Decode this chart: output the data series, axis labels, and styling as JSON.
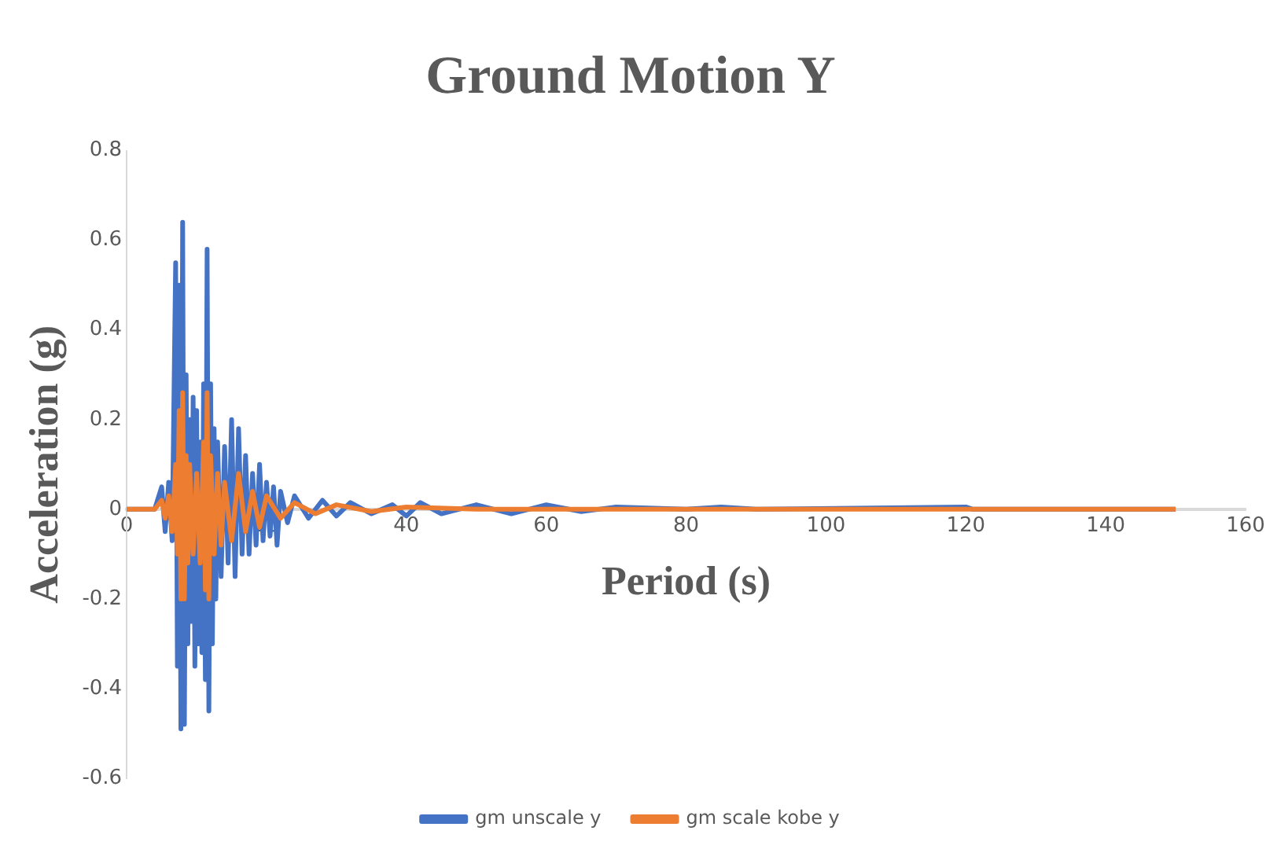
{
  "chart_data": {
    "type": "line",
    "title": "Ground Motion Y",
    "xlabel": "Period (s)",
    "ylabel": "Acceleration (g)",
    "xlim": [
      0,
      160
    ],
    "xticks": [
      0,
      20,
      40,
      60,
      80,
      100,
      120,
      140,
      160
    ],
    "ylim": [
      -0.6,
      0.8
    ],
    "yticks": [
      -0.6,
      -0.4,
      -0.2,
      0,
      0.2,
      0.4,
      0.6,
      0.8
    ],
    "grid": false,
    "legend": "bottom",
    "marker": "none",
    "line_style": "solid",
    "series": [
      {
        "name": "gm unscale y",
        "color": "#4472c4",
        "x": [
          0,
          4,
          5,
          5.5,
          6,
          6.5,
          7,
          7.25,
          7.5,
          7.75,
          8,
          8.25,
          8.5,
          8.75,
          9,
          9.25,
          9.5,
          9.75,
          10,
          10.25,
          10.5,
          10.75,
          11,
          11.25,
          11.5,
          11.75,
          12,
          12.25,
          12.5,
          12.75,
          13,
          13.5,
          14,
          14.5,
          15,
          15.5,
          16,
          16.5,
          17,
          17.5,
          18,
          18.5,
          19,
          19.5,
          20,
          20.5,
          21,
          21.5,
          22,
          23,
          24,
          26,
          28,
          30,
          32,
          35,
          38,
          40,
          42,
          45,
          50,
          55,
          60,
          65,
          70,
          80,
          85,
          90,
          120,
          121,
          150
        ],
        "values": [
          0,
          0,
          0.05,
          -0.05,
          0.06,
          -0.07,
          0.55,
          -0.35,
          0.5,
          -0.49,
          0.64,
          -0.48,
          0.3,
          -0.3,
          0.2,
          -0.25,
          0.25,
          -0.35,
          0.22,
          -0.3,
          0.15,
          -0.32,
          0.28,
          -0.38,
          0.58,
          -0.45,
          0.28,
          -0.3,
          0.18,
          -0.2,
          0.15,
          -0.15,
          0.14,
          -0.12,
          0.2,
          -0.15,
          0.18,
          -0.1,
          0.12,
          -0.1,
          0.08,
          -0.08,
          0.1,
          -0.07,
          0.06,
          -0.06,
          0.05,
          -0.08,
          0.04,
          -0.03,
          0.03,
          -0.02,
          0.02,
          -0.015,
          0.015,
          -0.01,
          0.01,
          -0.015,
          0.015,
          -0.01,
          0.01,
          -0.01,
          0.01,
          -0.005,
          0.005,
          0,
          0.005,
          0,
          0.005,
          0,
          0
        ]
      },
      {
        "name": "gm scale kobe y",
        "color": "#ed7d31",
        "x": [
          0,
          4,
          5,
          5.5,
          6,
          6.5,
          7,
          7.25,
          7.5,
          7.75,
          8,
          8.25,
          8.5,
          8.75,
          9,
          9.5,
          10,
          10.5,
          11,
          11.25,
          11.5,
          11.75,
          12,
          12.5,
          13,
          13.5,
          14,
          15,
          16,
          17,
          18,
          19,
          20,
          22,
          24,
          27,
          30,
          35,
          40,
          50,
          150
        ],
        "values": [
          0,
          0,
          0.02,
          -0.02,
          0.03,
          -0.05,
          0.1,
          -0.1,
          0.22,
          -0.2,
          0.26,
          -0.2,
          0.12,
          -0.12,
          0.1,
          -0.1,
          0.08,
          -0.12,
          0.15,
          -0.18,
          0.26,
          -0.2,
          0.12,
          -0.1,
          0.08,
          -0.08,
          0.06,
          -0.07,
          0.08,
          -0.05,
          0.04,
          -0.04,
          0.03,
          -0.02,
          0.015,
          -0.01,
          0.01,
          -0.005,
          0.005,
          0,
          0
        ]
      }
    ]
  }
}
